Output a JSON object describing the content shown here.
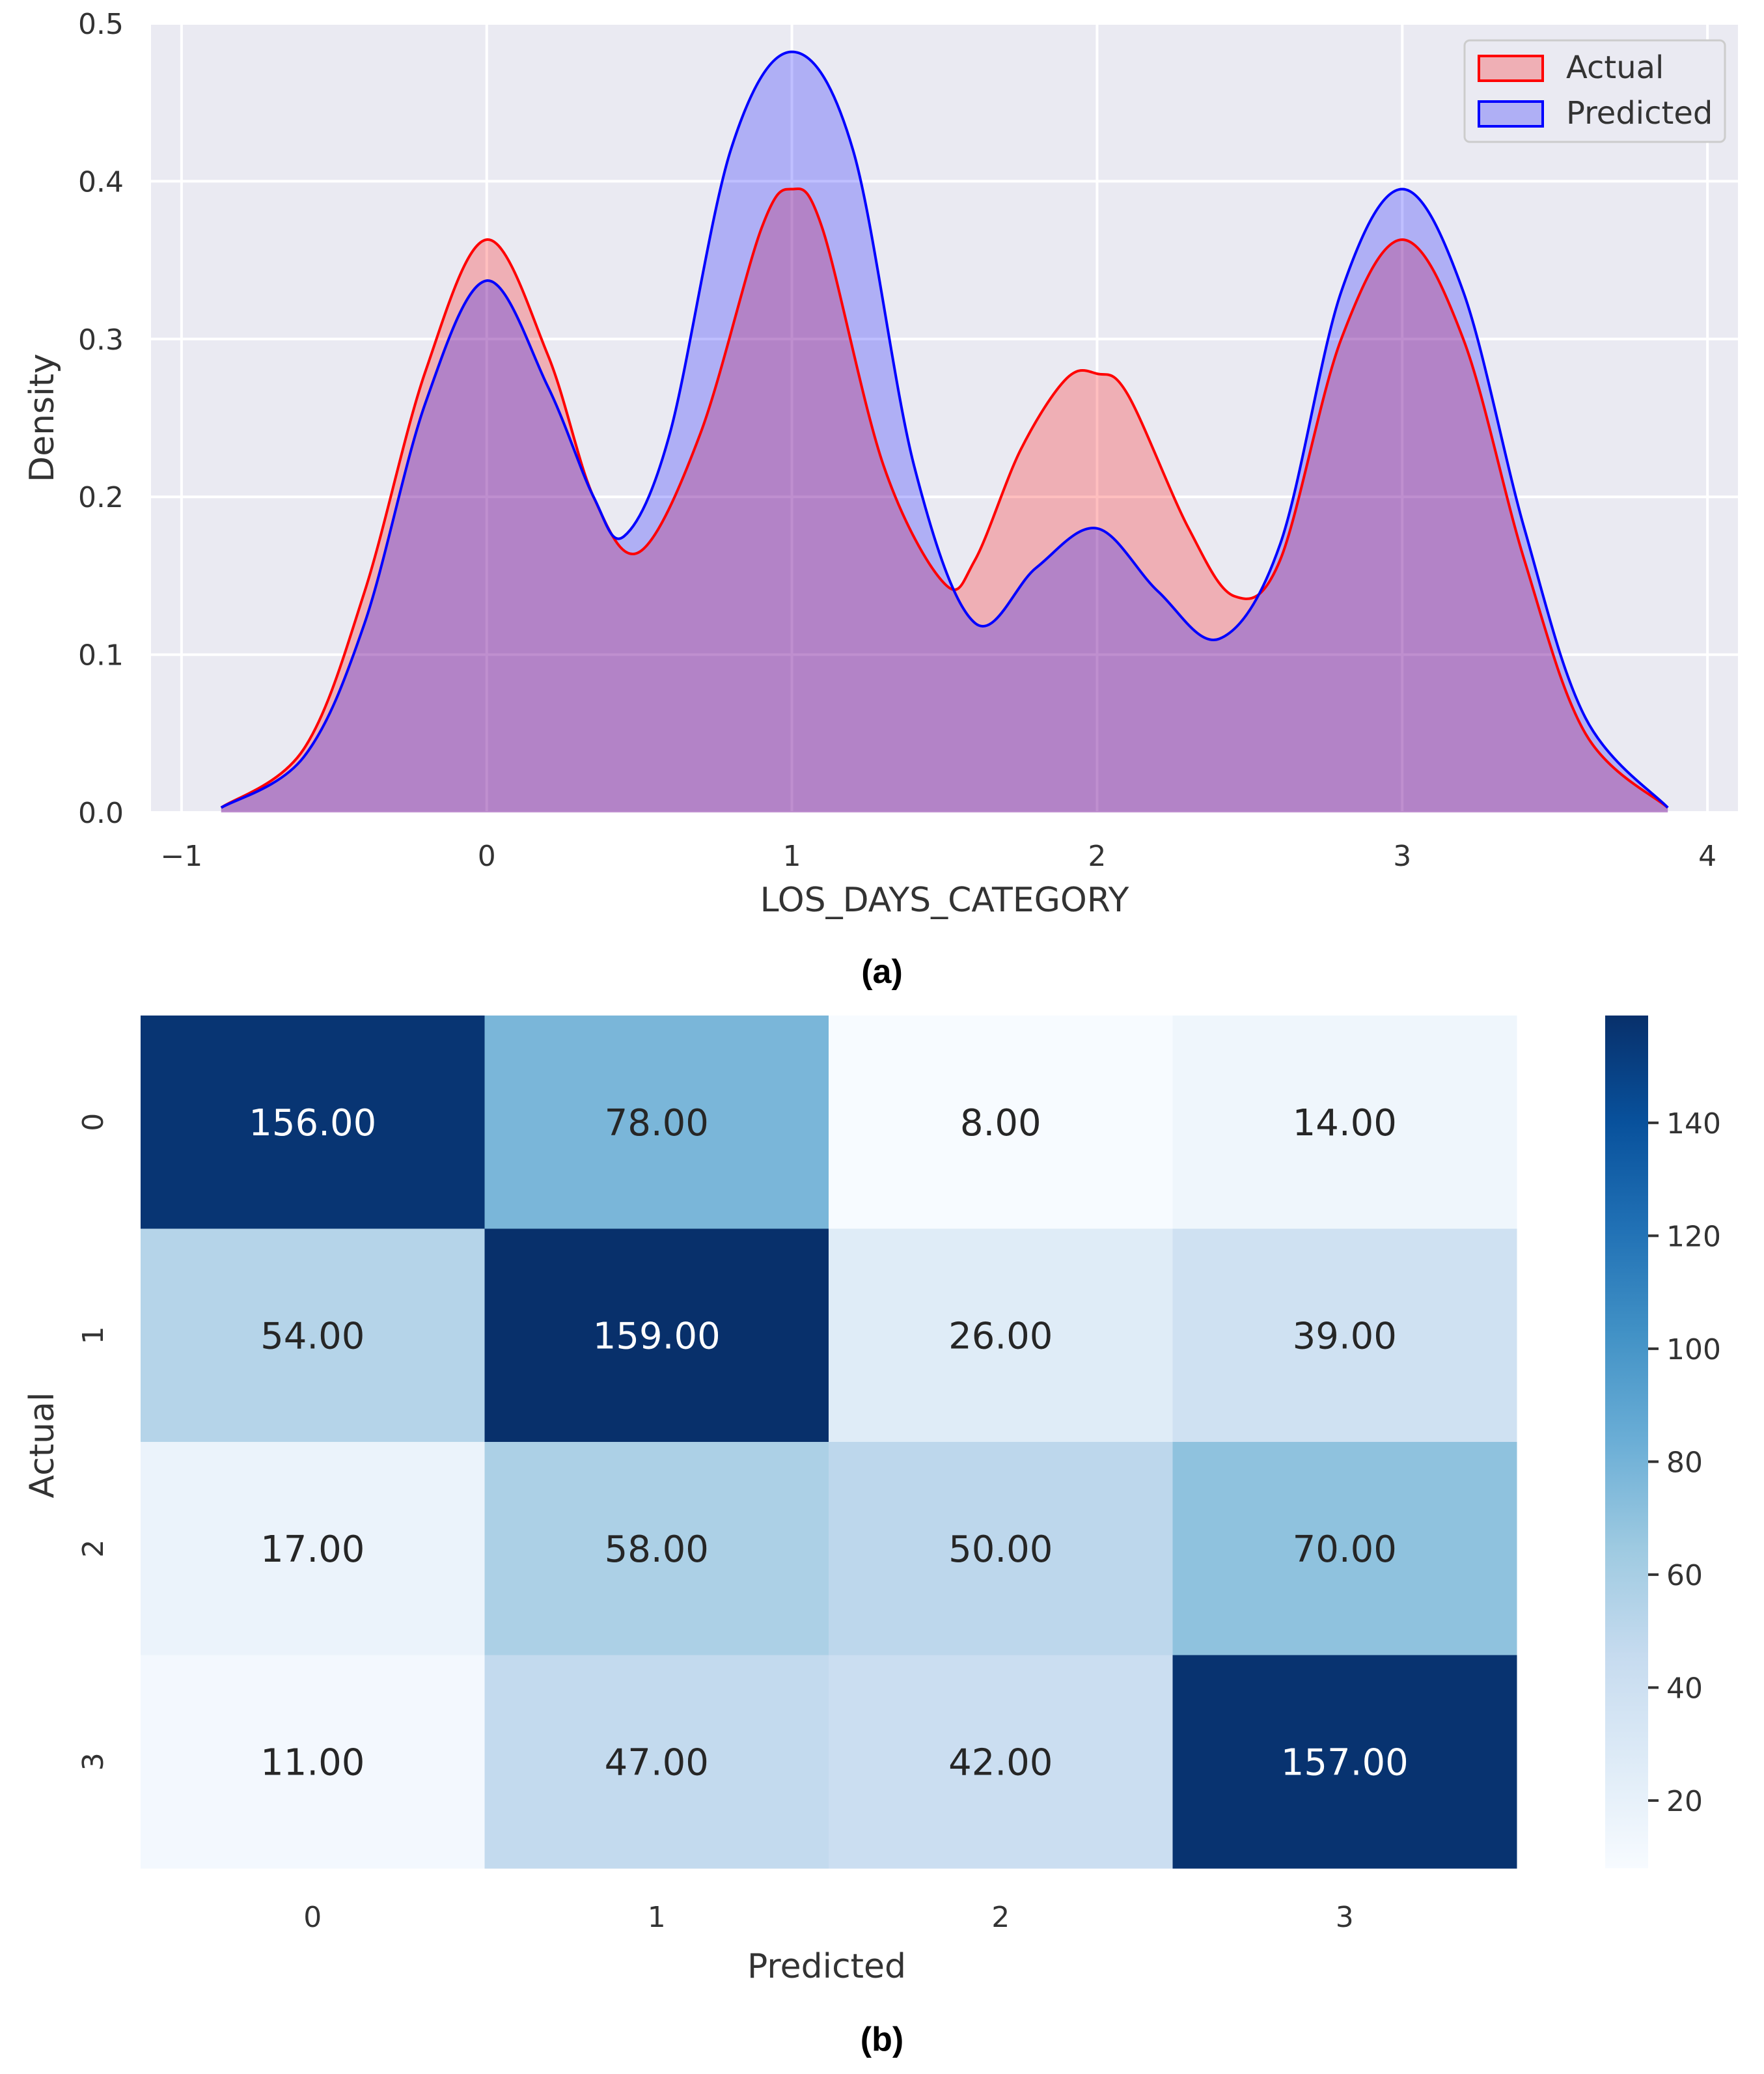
{
  "chart_data": [
    {
      "type": "area",
      "panel_label": "(a)",
      "kind": "kde",
      "xlabel": "LOS_DAYS_CATEGORY",
      "ylabel": "Density",
      "xlim": [
        -1.1,
        4.1
      ],
      "ylim": [
        0,
        0.5
      ],
      "xticks": [
        -1,
        0,
        1,
        2,
        3,
        4
      ],
      "xtick_labels": [
        "−1",
        "0",
        "1",
        "2",
        "3",
        "4"
      ],
      "yticks": [
        0.0,
        0.1,
        0.2,
        0.3,
        0.4,
        0.5
      ],
      "ytick_labels": [
        "0.0",
        "0.1",
        "0.2",
        "0.3",
        "0.4",
        "0.5"
      ],
      "grid": true,
      "legend": "top-right",
      "colors": {
        "background": "#eaeaf2",
        "grid": "#ffffff",
        "axis_text": "#333333"
      },
      "series": [
        {
          "name": "Actual",
          "color": "#ff0000",
          "fill": "#ff0000",
          "fill_alpha": 0.25,
          "x": [
            -0.87,
            -0.6,
            -0.4,
            -0.2,
            0.0,
            0.2,
            0.35,
            0.5,
            0.7,
            0.9,
            1.0,
            1.1,
            1.3,
            1.5,
            1.6,
            1.75,
            1.9,
            2.0,
            2.1,
            2.3,
            2.45,
            2.6,
            2.8,
            3.0,
            3.2,
            3.4,
            3.6,
            3.87
          ],
          "y": [
            0.003,
            0.04,
            0.14,
            0.28,
            0.363,
            0.29,
            0.2,
            0.165,
            0.24,
            0.37,
            0.395,
            0.37,
            0.22,
            0.145,
            0.16,
            0.23,
            0.275,
            0.278,
            0.265,
            0.18,
            0.137,
            0.16,
            0.3,
            0.363,
            0.3,
            0.16,
            0.05,
            0.003
          ]
        },
        {
          "name": "Predicted",
          "color": "#0000ff",
          "fill": "#0000ff",
          "fill_alpha": 0.25,
          "x": [
            -0.87,
            -0.6,
            -0.4,
            -0.2,
            0.0,
            0.2,
            0.35,
            0.45,
            0.6,
            0.8,
            1.0,
            1.2,
            1.4,
            1.6,
            1.8,
            2.0,
            2.2,
            2.4,
            2.6,
            2.8,
            3.0,
            3.2,
            3.4,
            3.6,
            3.87
          ],
          "y": [
            0.003,
            0.035,
            0.12,
            0.26,
            0.337,
            0.27,
            0.2,
            0.175,
            0.24,
            0.42,
            0.482,
            0.42,
            0.22,
            0.12,
            0.155,
            0.18,
            0.14,
            0.11,
            0.17,
            0.33,
            0.395,
            0.33,
            0.18,
            0.06,
            0.003
          ]
        }
      ]
    },
    {
      "type": "heatmap",
      "panel_label": "(b)",
      "xlabel": "Predicted",
      "ylabel": "Actual",
      "row_labels": [
        "0",
        "1",
        "2",
        "3"
      ],
      "col_labels": [
        "0",
        "1",
        "2",
        "3"
      ],
      "values": [
        [
          156,
          78,
          8,
          14
        ],
        [
          54,
          159,
          26,
          39
        ],
        [
          17,
          58,
          50,
          70
        ],
        [
          11,
          47,
          42,
          157
        ]
      ],
      "value_labels": [
        [
          "156.00",
          "78.00",
          "8.00",
          "14.00"
        ],
        [
          "54.00",
          "159.00",
          "26.00",
          "39.00"
        ],
        [
          "17.00",
          "58.00",
          "50.00",
          "70.00"
        ],
        [
          "11.00",
          "47.00",
          "42.00",
          "157.00"
        ]
      ],
      "colormap": "Blues",
      "vmin": 8,
      "vmax": 159,
      "colorbar_ticks": [
        20,
        40,
        60,
        80,
        100,
        120,
        140
      ],
      "colorbar_tick_labels": [
        "20",
        "40",
        "60",
        "80",
        "100",
        "120",
        "140"
      ]
    }
  ]
}
